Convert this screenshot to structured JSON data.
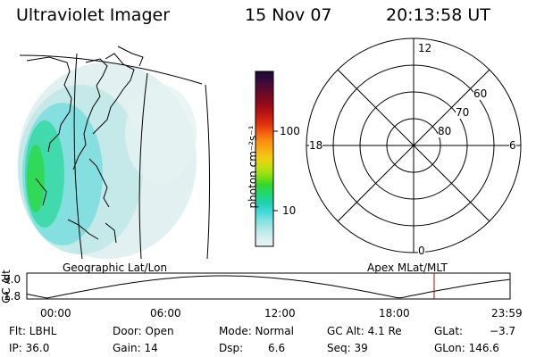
{
  "header": {
    "instrument": "Ultraviolet Imager",
    "date": "15 Nov 07",
    "time": "20:13:58 UT"
  },
  "map_panel": {
    "label": "Geographic Lat/Lon"
  },
  "colorbar": {
    "unit": "photon cm⁻²s⁻¹",
    "ticks": [
      "100",
      "10"
    ],
    "colors": [
      "#1a0a2e",
      "#3a0a3a",
      "#5a0a30",
      "#7a0a20",
      "#a00a1a",
      "#c01a10",
      "#e03010",
      "#f06010",
      "#f89010",
      "#f8b010",
      "#f0d010",
      "#c0e010",
      "#80e010",
      "#30d830",
      "#20d870",
      "#20d0b0",
      "#40d8d8",
      "#80e0e0",
      "#b0e8e8",
      "#d8eef0",
      "#e8f2f4"
    ]
  },
  "polar_panel": {
    "label": "Apex  MLat/MLT",
    "mlt_labels": [
      "12",
      "18",
      "6",
      "0"
    ],
    "lat_labels": [
      "60",
      "70",
      "80"
    ]
  },
  "altitude_plot": {
    "ylabel": "GC Alt",
    "yticks": [
      "9.0",
      "1.8"
    ],
    "xticks": [
      "00:00",
      "06:00",
      "12:00",
      "18:00",
      "23:59"
    ],
    "curve_color": "#000000",
    "marker_color": "#c00000",
    "marker_time_hours": 20.23
  },
  "footer": {
    "flt": "Flt: LBHL",
    "ip": "IP: 36.0",
    "door": "Door: Open",
    "gain": "Gain: 14",
    "mode": "Mode: Normal",
    "dsp_label": "Dsp:",
    "dsp_value": "6.6",
    "gcalt": "GC Alt: 4.1 Re",
    "seq": "Seq: 39",
    "glat_label": "GLat:",
    "glat_value": "−3.7",
    "glon": "GLon: 146.6"
  }
}
